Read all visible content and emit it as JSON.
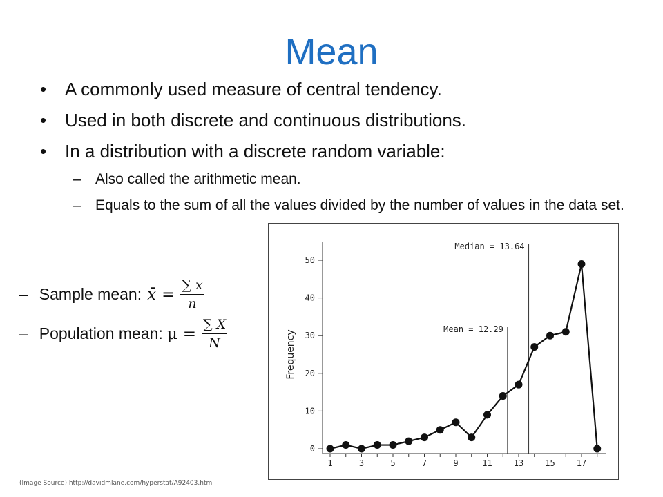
{
  "slide": {
    "title": "Mean",
    "bullets": [
      "A commonly used measure of central tendency.",
      "Used in both discrete and continuous distributions.",
      "In a distribution with a discrete random variable:"
    ],
    "sub_bullets": [
      "Also called the arithmetic mean.",
      "Equals to the sum of all the values divided by the number of values in the data set."
    ],
    "bullet_symbol": "•",
    "dash_symbol": "–",
    "sample_mean": {
      "label": "Sample mean:",
      "symbol": "x̄",
      "equals": "=",
      "numerator": "∑ x",
      "denominator": "n"
    },
    "population_mean": {
      "label": "Population mean:",
      "symbol": "μ",
      "equals": "=",
      "numerator": "∑ X",
      "denominator": "N"
    },
    "source": "(Image Source) http://davidmlane.com/hyperstat/A92403.html",
    "colors": {
      "title": "#1f6fc2"
    }
  },
  "chart_data": {
    "type": "line",
    "x": [
      1,
      2,
      3,
      4,
      5,
      6,
      7,
      8,
      9,
      10,
      11,
      12,
      13,
      14,
      15,
      16,
      17,
      18
    ],
    "values": [
      0,
      1,
      0,
      1,
      1,
      2,
      3,
      5,
      7,
      3,
      9,
      14,
      17,
      27,
      30,
      31,
      49,
      0
    ],
    "xticks": [
      "1",
      "3",
      "5",
      "7",
      "9",
      "11",
      "13",
      "15",
      "17"
    ],
    "yticks": [
      "0",
      "10",
      "20",
      "30",
      "40",
      "50"
    ],
    "ylabel": "Frequency",
    "xlim": [
      1,
      18
    ],
    "ylim": [
      0,
      50
    ],
    "annotations": [
      {
        "label": "Mean = 12.29",
        "x": 12.29
      },
      {
        "label": "Median = 13.64",
        "x": 13.64
      }
    ],
    "grid": false
  }
}
